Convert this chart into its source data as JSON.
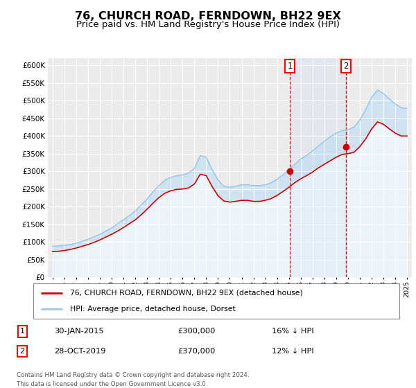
{
  "title": "76, CHURCH ROAD, FERNDOWN, BH22 9EX",
  "subtitle": "Price paid vs. HM Land Registry's House Price Index (HPI)",
  "title_fontsize": 11.5,
  "subtitle_fontsize": 9.5,
  "ylim": [
    0,
    620000
  ],
  "yticks": [
    0,
    50000,
    100000,
    150000,
    200000,
    250000,
    300000,
    350000,
    400000,
    450000,
    500000,
    550000,
    600000
  ],
  "background_color": "#ffffff",
  "plot_bg_color": "#ebebeb",
  "grid_color": "#ffffff",
  "hpi_color": "#93c6e8",
  "hpi_fill_color": "#c8e0f5",
  "price_color": "#cc0000",
  "sale1_date": "30-JAN-2015",
  "sale1_price": 300000,
  "sale1_label": "16% ↓ HPI",
  "sale2_date": "28-OCT-2019",
  "sale2_price": 370000,
  "sale2_label": "12% ↓ HPI",
  "legend_label1": "76, CHURCH ROAD, FERNDOWN, BH22 9EX (detached house)",
  "legend_label2": "HPI: Average price, detached house, Dorset",
  "footnote_line1": "Contains HM Land Registry data © Crown copyright and database right 2024.",
  "footnote_line2": "This data is licensed under the Open Government Licence v3.0.",
  "hpi_years": [
    1995,
    1995.5,
    1996,
    1996.5,
    1997,
    1997.5,
    1998,
    1998.5,
    1999,
    1999.5,
    2000,
    2000.5,
    2001,
    2001.5,
    2002,
    2002.5,
    2003,
    2003.5,
    2004,
    2004.5,
    2005,
    2005.5,
    2006,
    2006.5,
    2007,
    2007.5,
    2008,
    2008.5,
    2009,
    2009.5,
    2010,
    2010.5,
    2011,
    2011.5,
    2012,
    2012.5,
    2013,
    2013.5,
    2014,
    2014.5,
    2015,
    2015.5,
    2016,
    2016.5,
    2017,
    2017.5,
    2018,
    2018.5,
    2019,
    2019.5,
    2020,
    2020.5,
    2021,
    2021.5,
    2022,
    2022.5,
    2023,
    2023.5,
    2024,
    2024.5,
    2025
  ],
  "hpi_values": [
    88000,
    89000,
    91000,
    93000,
    97000,
    102000,
    108000,
    115000,
    122000,
    131000,
    140000,
    152000,
    163000,
    175000,
    188000,
    205000,
    222000,
    242000,
    260000,
    275000,
    283000,
    288000,
    290000,
    295000,
    308000,
    345000,
    340000,
    305000,
    275000,
    258000,
    255000,
    258000,
    262000,
    262000,
    260000,
    260000,
    262000,
    268000,
    278000,
    290000,
    305000,
    320000,
    335000,
    345000,
    358000,
    372000,
    385000,
    398000,
    408000,
    415000,
    418000,
    425000,
    445000,
    475000,
    510000,
    530000,
    520000,
    505000,
    490000,
    480000,
    478000
  ],
  "price_years": [
    1995,
    1995.5,
    1996,
    1996.5,
    1997,
    1997.5,
    1998,
    1998.5,
    1999,
    1999.5,
    2000,
    2000.5,
    2001,
    2001.5,
    2002,
    2002.5,
    2003,
    2003.5,
    2004,
    2004.5,
    2005,
    2005.5,
    2006,
    2006.5,
    2007,
    2007.5,
    2008,
    2008.5,
    2009,
    2009.5,
    2010,
    2010.5,
    2011,
    2011.5,
    2012,
    2012.5,
    2013,
    2013.5,
    2014,
    2014.5,
    2015,
    2015.5,
    2016,
    2016.5,
    2017,
    2017.5,
    2018,
    2018.5,
    2019,
    2019.5,
    2020,
    2020.5,
    2021,
    2021.5,
    2022,
    2022.5,
    2023,
    2023.5,
    2024,
    2024.5,
    2025
  ],
  "price_values": [
    73000,
    74000,
    76000,
    79000,
    83000,
    88000,
    93000,
    99000,
    106000,
    114000,
    122000,
    131000,
    141000,
    152000,
    163000,
    177000,
    193000,
    210000,
    226000,
    238000,
    245000,
    249000,
    250000,
    253000,
    264000,
    292000,
    288000,
    257000,
    231000,
    216000,
    213000,
    215000,
    218000,
    218000,
    215000,
    215000,
    218000,
    223000,
    232000,
    243000,
    255000,
    268000,
    279000,
    288000,
    298000,
    310000,
    320000,
    330000,
    340000,
    348000,
    350000,
    354000,
    370000,
    392000,
    420000,
    440000,
    433000,
    420000,
    408000,
    400000,
    400000
  ],
  "sale1_x": 2015.08,
  "sale2_x": 2019.83,
  "xtick_years": [
    1995,
    1996,
    1997,
    1998,
    1999,
    2000,
    2001,
    2002,
    2003,
    2004,
    2005,
    2006,
    2007,
    2008,
    2009,
    2010,
    2011,
    2012,
    2013,
    2014,
    2015,
    2016,
    2017,
    2018,
    2019,
    2020,
    2021,
    2022,
    2023,
    2024,
    2025
  ]
}
